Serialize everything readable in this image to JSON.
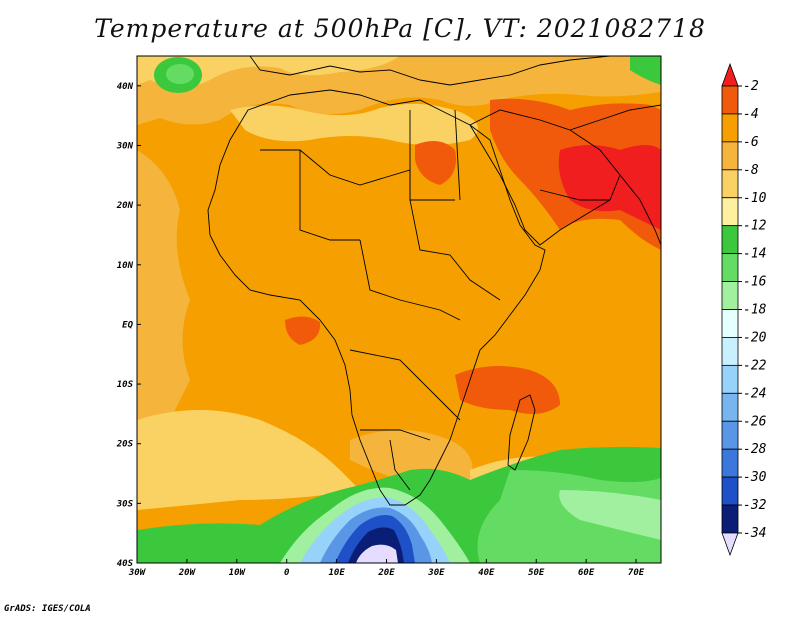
{
  "title": "Temperature at 500hPa [C], VT: 2021082718",
  "footer": "GrADS: IGES/COLA",
  "map": {
    "lon_range": [
      -30,
      75
    ],
    "lat_range": [
      -40,
      45
    ],
    "lat_ticks": [
      {
        "value": 40,
        "label": "40N"
      },
      {
        "value": 30,
        "label": "30N"
      },
      {
        "value": 20,
        "label": "20N"
      },
      {
        "value": 10,
        "label": "10N"
      },
      {
        "value": 0,
        "label": "EQ"
      },
      {
        "value": -10,
        "label": "10S"
      },
      {
        "value": -20,
        "label": "20S"
      },
      {
        "value": -30,
        "label": "30S"
      },
      {
        "value": -40,
        "label": "40S"
      }
    ],
    "lon_ticks": [
      {
        "value": -30,
        "label": "30W"
      },
      {
        "value": -20,
        "label": "20W"
      },
      {
        "value": -10,
        "label": "10W"
      },
      {
        "value": 0,
        "label": "0"
      },
      {
        "value": 10,
        "label": "10E"
      },
      {
        "value": 20,
        "label": "20E"
      },
      {
        "value": 30,
        "label": "30E"
      },
      {
        "value": 40,
        "label": "40E"
      },
      {
        "value": 50,
        "label": "50E"
      },
      {
        "value": 60,
        "label": "60E"
      },
      {
        "value": 70,
        "label": "70E"
      }
    ]
  },
  "colorbar": {
    "labels": [
      "-2",
      "-4",
      "-6",
      "-8",
      "-10",
      "-12",
      "-14",
      "-16",
      "-18",
      "-20",
      "-22",
      "-24",
      "-26",
      "-28",
      "-30",
      "-32",
      "-34"
    ],
    "colors": [
      "#f01e1e",
      "#f05a0a",
      "#f5a000",
      "#f5b43c",
      "#fad264",
      "#fff0a0",
      "#3cc83c",
      "#64dc64",
      "#a0f0a0",
      "#e6ffff",
      "#c8f0ff",
      "#96d2fa",
      "#78b4f0",
      "#5a96e6",
      "#3c78dc",
      "#1e50c8",
      "#0a1e78",
      "#e6dcff"
    ]
  }
}
